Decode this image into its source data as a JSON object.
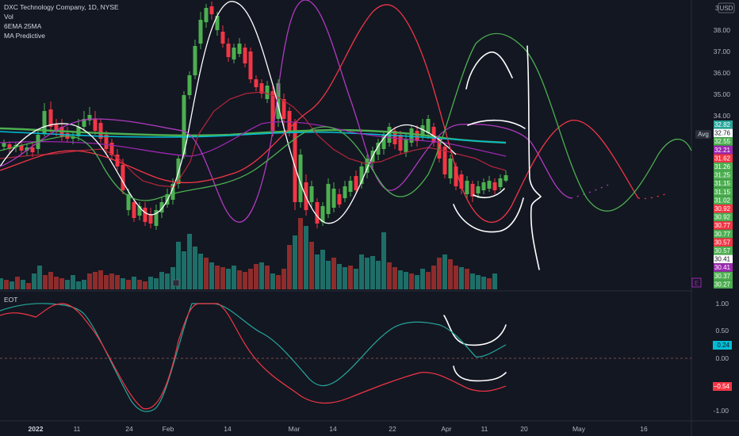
{
  "header": {
    "symbol": "DXC Technology Company, 1D, NYSE",
    "indicators": [
      "Vol",
      "6EMA 25MA",
      "MA Predictive"
    ],
    "currency": "USD"
  },
  "lower_pane": {
    "title": "EOT"
  },
  "price_axis": {
    "ticks": [
      "38.00",
      "37.00",
      "36.00",
      "35.00",
      "34.00"
    ],
    "badges": [
      {
        "label": "32.82",
        "bg": "#26a69a",
        "fg": "#ffffff"
      },
      {
        "label": "32.76",
        "bg": "#ffffff",
        "fg": "#131722"
      },
      {
        "label": "32.55",
        "bg": "#4caf50",
        "fg": "#ffffff"
      },
      {
        "label": "32.21",
        "bg": "#9c27b0",
        "fg": "#ffffff"
      },
      {
        "label": "31.62",
        "bg": "#f23645",
        "fg": "#ffffff"
      },
      {
        "label": "31.26",
        "bg": "#4caf50",
        "fg": "#ffffff"
      },
      {
        "label": "31.25",
        "bg": "#4caf50",
        "fg": "#ffffff"
      },
      {
        "label": "31.15",
        "bg": "#4caf50",
        "fg": "#ffffff"
      },
      {
        "label": "31.15",
        "bg": "#4caf50",
        "fg": "#ffffff"
      },
      {
        "label": "31.02",
        "bg": "#4caf50",
        "fg": "#ffffff"
      },
      {
        "label": "30.92",
        "bg": "#f23645",
        "fg": "#ffffff"
      },
      {
        "label": "30.92",
        "bg": "#4caf50",
        "fg": "#ffffff"
      },
      {
        "label": "30.77",
        "bg": "#f23645",
        "fg": "#ffffff"
      },
      {
        "label": "30.77",
        "bg": "#4caf50",
        "fg": "#ffffff"
      },
      {
        "label": "30.57",
        "bg": "#f23645",
        "fg": "#ffffff"
      },
      {
        "label": "30.57",
        "bg": "#4caf50",
        "fg": "#ffffff"
      },
      {
        "label": "30.41",
        "bg": "#ffffff",
        "fg": "#131722"
      },
      {
        "label": "30.41",
        "bg": "#9c27b0",
        "fg": "#ffffff"
      },
      {
        "label": "30.37",
        "bg": "#4caf50",
        "fg": "#ffffff"
      },
      {
        "label": "30.27",
        "bg": "#4caf50",
        "fg": "#ffffff"
      }
    ],
    "avg_label": "Avg",
    "top_partial": "3"
  },
  "eot_axis": {
    "ticks": [
      "1.00",
      "0.50",
      "0.00",
      "-0.50",
      "-1.00"
    ],
    "badges": [
      {
        "label": "0.24",
        "bg": "#00bcd4",
        "fg": "#131722"
      },
      {
        "label": "−0.54",
        "bg": "#f23645",
        "fg": "#ffffff"
      }
    ]
  },
  "time_axis": {
    "labels": [
      {
        "label": "2022",
        "bold": true
      },
      {
        "label": "11",
        "bold": false
      },
      {
        "label": "24",
        "bold": false
      },
      {
        "label": "Feb",
        "bold": false
      },
      {
        "label": "14",
        "bold": false
      },
      {
        "label": "Mar",
        "bold": false
      },
      {
        "label": "14",
        "bold": false
      },
      {
        "label": "22",
        "bold": false
      },
      {
        "label": "Apr",
        "bold": false
      },
      {
        "label": "11",
        "bold": false
      },
      {
        "label": "20",
        "bold": false
      },
      {
        "label": "May",
        "bold": false
      },
      {
        "label": "16",
        "bold": false
      }
    ]
  },
  "markers": {
    "earnings": "E"
  },
  "colors": {
    "background": "#131722",
    "up": "#4caf50",
    "down": "#f23645",
    "vol_up": "#26a69a",
    "vol_down": "#ef5350",
    "ema_green": "#4caf50",
    "cyan": "#00bcd4",
    "purple": "#9c27b0",
    "red": "#f23645"
  }
}
